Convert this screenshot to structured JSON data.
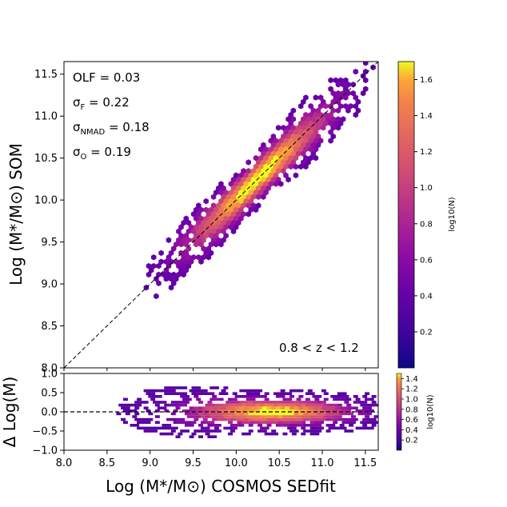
{
  "chart_data": [
    {
      "type": "heatmap",
      "subtype": "hexbin",
      "title": "",
      "xlabel": "Log (M*/M⊙) COSMOS SEDfit",
      "ylabel": "Log (M*/M⊙) SOM",
      "xlim": [
        8.0,
        11.65
      ],
      "ylim": [
        8.0,
        11.65
      ],
      "xticks": [
        "8.0",
        "8.5",
        "9.0",
        "9.5",
        "10.0",
        "10.5",
        "11.0",
        "11.5"
      ],
      "yticks": [
        "8.0",
        "8.5",
        "9.0",
        "9.5",
        "10.0",
        "10.5",
        "11.0",
        "11.5"
      ],
      "one_to_one_line": true,
      "colormap": "plasma",
      "stats": {
        "olf": {
          "label": "OLF",
          "value": "0.03"
        },
        "sigma_f": {
          "label": "σ",
          "sub": "F",
          "value": "0.22"
        },
        "sigma_nmad": {
          "label": "σ",
          "sub": "NMAD",
          "value": "0.18"
        },
        "sigma_o": {
          "label": "σ",
          "sub": "O",
          "value": "0.19"
        }
      },
      "redshift_range": "0.8 < z < 1.2",
      "colorbar": {
        "label": "log10(N)",
        "ticks": [
          "0.2",
          "0.4",
          "0.6",
          "0.8",
          "1.0",
          "1.2",
          "1.4",
          "1.6"
        ],
        "range": [
          0.0,
          1.7
        ]
      }
    },
    {
      "type": "heatmap",
      "subtype": "hexbin",
      "xlabel": "Log (M*/M⊙) COSMOS SEDfit",
      "ylabel": "Δ Log(M)",
      "xlim": [
        8.0,
        11.65
      ],
      "ylim": [
        -1.0,
        1.0
      ],
      "xticks": [
        "8.0",
        "8.5",
        "9.0",
        "9.5",
        "10.0",
        "10.5",
        "11.0",
        "11.5"
      ],
      "yticks": [
        "−1.0",
        "−0.5",
        "0.0",
        "0.5",
        "1.0"
      ],
      "zero_line": true,
      "colormap": "plasma",
      "colorbar": {
        "label": "log10(N)",
        "ticks": [
          "0.2",
          "0.4",
          "0.6",
          "0.8",
          "1.0",
          "1.2",
          "1.4"
        ],
        "range": [
          0.0,
          1.5
        ]
      }
    }
  ]
}
